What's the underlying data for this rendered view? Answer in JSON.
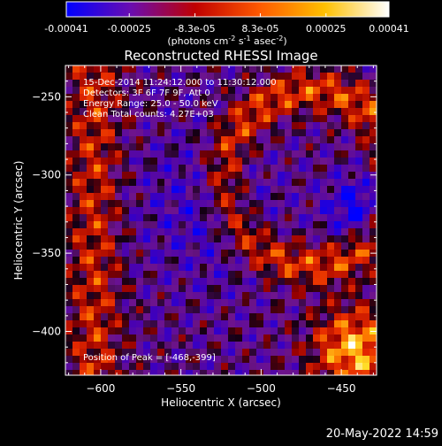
{
  "chart_data": {
    "type": "heatmap",
    "title": "Reconstructed RHESSI Image",
    "xlabel": "Heliocentric X (arcsec)",
    "ylabel": "Heliocentric Y (arcsec)",
    "xlim": [
      -622,
      -428
    ],
    "ylim": [
      -428,
      -230
    ],
    "x_ticks": [
      -600,
      -550,
      -500,
      -450
    ],
    "y_ticks": [
      -400,
      -350,
      -300,
      -250
    ],
    "grid": false,
    "annotations": [
      "15-Dec-2014 11:24:12.000 to 11:30:12.000",
      "Detectors: 3F 6F 7F 9F, Att 0",
      "Energy Range: 25.0 - 50.0 keV",
      "Clean     Total counts: 4.27E+03"
    ],
    "peak_label": "Position of Peak = [-468,-399]",
    "peak_position": [
      -468,
      -399
    ],
    "colorbar": {
      "min": -0.00041,
      "max": 0.00041,
      "tick_values": [
        -0.00041,
        -0.00025,
        -8.3e-05,
        8.3e-05,
        0.00025,
        0.00041
      ],
      "tick_labels": [
        "-0.00041",
        "-0.00025",
        "-8.3e-05",
        "8.3e-05",
        "0.00025",
        "0.00041"
      ],
      "colors": [
        "#0000ff",
        "#6a0db0",
        "#c00000",
        "#ff5a00",
        "#ffc000",
        "#ffffff"
      ]
    },
    "units_prefix": "(photons cm",
    "units_exp1": "-2",
    "units_mid": " s",
    "units_exp2": "-1",
    "units_mid2": " asec",
    "units_exp3": "-2",
    "units_suffix": ")",
    "footer_date": "20-May-2022 14:59"
  }
}
